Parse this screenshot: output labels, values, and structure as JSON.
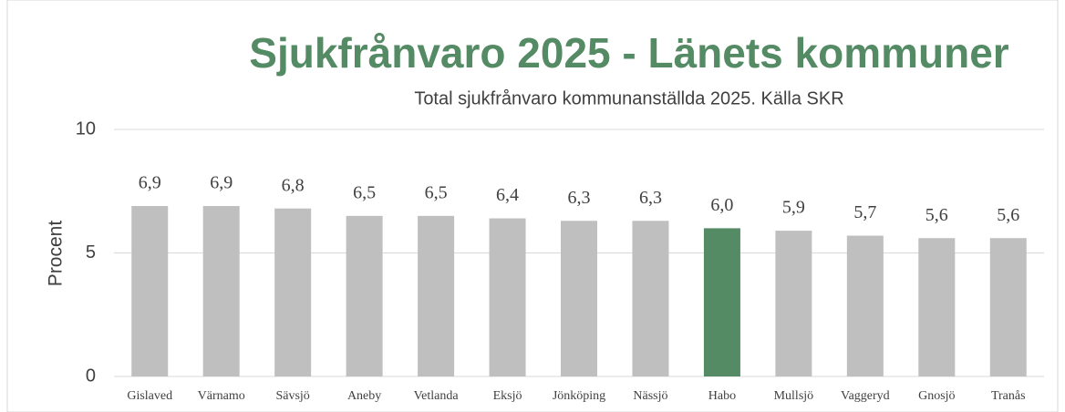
{
  "chart_data": {
    "type": "bar",
    "title": "Sjukfrånvaro 2025 - Länets kommuner",
    "subtitle": "Total sjukfrånvaro kommunanställda 2025. Källa SKR",
    "y_label": "Procent",
    "categories": [
      "Gislaved",
      "Värnamo",
      "Sävsjö",
      "Aneby",
      "Vetlanda",
      "Eksjö",
      "Jönköping",
      "Nässjö",
      "Habo",
      "Mullsjö",
      "Vaggeryd",
      "Gnosjö",
      "Tranås"
    ],
    "values": [
      6.9,
      6.9,
      6.8,
      6.5,
      6.5,
      6.4,
      6.3,
      6.3,
      6.0,
      5.9,
      5.7,
      5.6,
      5.6
    ],
    "value_labels": [
      "6,9",
      "6,9",
      "6,8",
      "6,5",
      "6,5",
      "6,4",
      "6,3",
      "6,3",
      "6,0",
      "5,9",
      "5,7",
      "5,6",
      "5,6"
    ],
    "colors": [
      "#bfbfbf",
      "#bfbfbf",
      "#bfbfbf",
      "#bfbfbf",
      "#bfbfbf",
      "#bfbfbf",
      "#bfbfbf",
      "#bfbfbf",
      "#548a64",
      "#bfbfbf",
      "#bfbfbf",
      "#bfbfbf",
      "#bfbfbf"
    ],
    "ylim": [
      0,
      10
    ],
    "yticks": [
      0,
      5,
      10
    ],
    "grid": true
  }
}
